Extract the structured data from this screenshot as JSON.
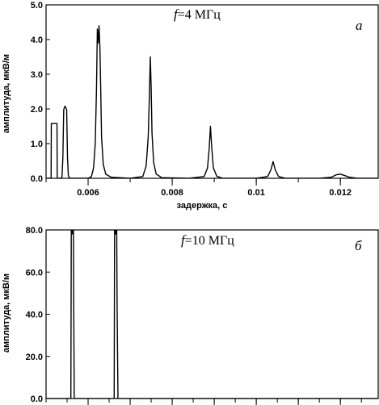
{
  "chart_data": [
    {
      "type": "line",
      "annotation_freq_symbol": "f",
      "annotation_freq_value": "=4 МГц",
      "panel_label": "а",
      "xlabel": "задержка, с",
      "ylabel": "амплитуда, мкВ/м",
      "xlim": [
        0.005,
        0.0129
      ],
      "ylim": [
        0,
        5
      ],
      "x_ticks": [
        0.006,
        0.008,
        0.01,
        0.012
      ],
      "x_tick_labels": [
        "0.006",
        "0.008",
        "0.01",
        "0.012"
      ],
      "y_ticks": [
        0,
        1,
        2,
        3,
        4,
        5
      ],
      "y_tick_labels": [
        "0.0",
        "1.0",
        "2.0",
        "3.0",
        "4.0",
        "5.0"
      ],
      "series": [
        {
          "x": [
            0.005,
            0.00512,
            0.005125,
            0.00526,
            0.005265,
            0.0053,
            0.00536,
            0.00538,
            0.0054,
            0.00542,
            0.00545,
            0.00549,
            0.00551,
            0.00553,
            0.00555,
            0.00557,
            0.0057,
            0.006,
            0.00608,
            0.00613,
            0.00617,
            0.0062,
            0.00622,
            0.00624,
            0.00626,
            0.00628,
            0.0063,
            0.00632,
            0.00636,
            0.00642,
            0.00655,
            0.007,
            0.0073,
            0.00738,
            0.00743,
            0.00746,
            0.00748,
            0.0075,
            0.00752,
            0.00756,
            0.00762,
            0.00775,
            0.0084,
            0.00876,
            0.00884,
            0.00888,
            0.00891,
            0.00894,
            0.00898,
            0.00906,
            0.0092,
            0.01,
            0.01027,
            0.01035,
            0.0104,
            0.01045,
            0.01053,
            0.0107,
            0.0115,
            0.01178,
            0.0119,
            0.012,
            0.0121,
            0.01222,
            0.0124,
            0.0129
          ],
          "y": [
            0,
            0,
            1.58,
            1.58,
            0,
            0,
            0,
            0.05,
            0.6,
            1.98,
            2.08,
            1.98,
            0.6,
            0.08,
            0.02,
            0,
            0,
            0,
            0.05,
            0.3,
            1.0,
            2.6,
            4.3,
            3.9,
            4.4,
            3.8,
            2.6,
            1.2,
            0.4,
            0.12,
            0.03,
            0,
            0.05,
            0.35,
            1.2,
            2.5,
            3.5,
            2.6,
            1.3,
            0.45,
            0.12,
            0.02,
            0,
            0.05,
            0.3,
            0.85,
            1.5,
            0.9,
            0.3,
            0.06,
            0,
            0,
            0.05,
            0.25,
            0.48,
            0.25,
            0.05,
            0,
            0,
            0.03,
            0.1,
            0.12,
            0.08,
            0.03,
            0,
            0
          ]
        }
      ]
    },
    {
      "type": "line",
      "annotation_freq_symbol": "f",
      "annotation_freq_value": "=10 МГц",
      "panel_label": "б",
      "xlabel": "",
      "ylabel": "амплитуда, мкВ/м",
      "xlim": [
        0.005,
        0.0129
      ],
      "ylim": [
        0,
        80
      ],
      "x_ticks": [
        0.006,
        0.007,
        0.008,
        0.009,
        0.01,
        0.011,
        0.012
      ],
      "x_tick_labels": [],
      "y_ticks": [
        0,
        20,
        40,
        60,
        80
      ],
      "y_tick_labels": [
        "0.0",
        "20.0",
        "40.0",
        "60.0",
        "80.0"
      ],
      "series": [
        {
          "x": [
            0.005,
            0.00559,
            0.0056,
            0.00561,
            0.00563,
            0.00564,
            0.00565,
            0.00566,
            0.00567,
            0.006,
            0.00662,
            0.00663,
            0.00664,
            0.00666,
            0.00667,
            0.00668,
            0.00669,
            0.00671,
            0.0067,
            0.0129
          ],
          "y": [
            0,
            0,
            82,
            78,
            82,
            78,
            82,
            38,
            0,
            0,
            0,
            82,
            78,
            82,
            78,
            82,
            44,
            1,
            0,
            0
          ]
        }
      ]
    }
  ]
}
